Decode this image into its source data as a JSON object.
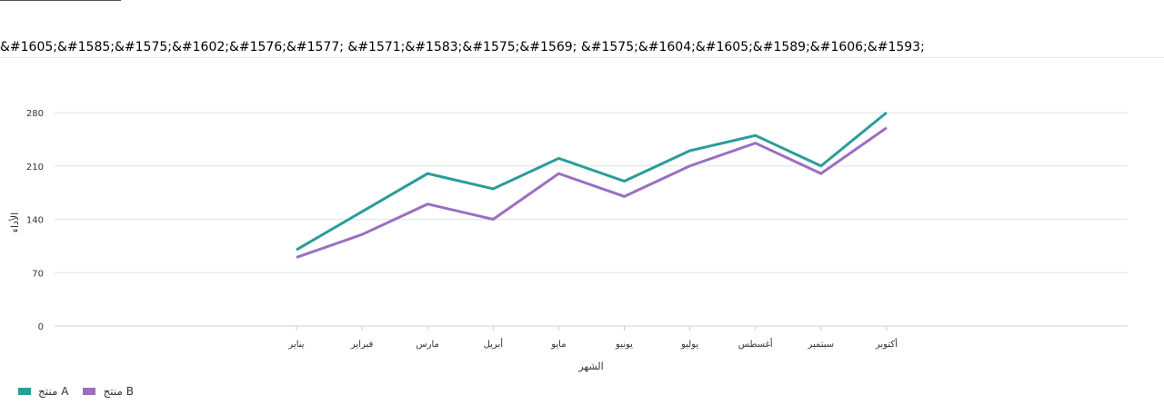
{
  "page": {
    "title": "&#1605;&#1585;&#1575;&#1602;&#1576;&#1577; &#1571;&#1583;&#1575;&#1569; &#1575;&#1604;&#1605;&#1589;&#1606;&#1593;"
  },
  "chart_data": {
    "type": "line",
    "title": "",
    "xlabel": "الشهر",
    "ylabel": "الأداء",
    "categories": [
      "يناير",
      "فبراير",
      "مارس",
      "أبريل",
      "مايو",
      "يونيو",
      "يوليو",
      "أغسطس",
      "سبتمبر",
      "أكتوبر"
    ],
    "yticks": [
      0,
      70,
      140,
      210,
      280
    ],
    "ylim": [
      0,
      280
    ],
    "grid": true,
    "legend_position": "bottom-left",
    "series": [
      {
        "name": "منتج A",
        "color": "#2a9d9a",
        "values": [
          100,
          150,
          200,
          180,
          220,
          190,
          230,
          250,
          210,
          280
        ]
      },
      {
        "name": "منتج B",
        "color": "#9a6fc2",
        "values": [
          90,
          120,
          160,
          140,
          200,
          170,
          210,
          240,
          200,
          260
        ]
      }
    ]
  }
}
